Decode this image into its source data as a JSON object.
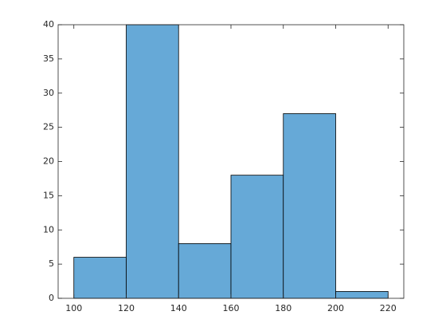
{
  "chart_data": {
    "type": "histogram",
    "bins": [
      100,
      120,
      140,
      160,
      180,
      200,
      220
    ],
    "values": [
      6,
      40,
      8,
      18,
      27,
      1
    ],
    "color": "#66a9d7",
    "edge_color": "#000000",
    "xlim": [
      94,
      226
    ],
    "ylim": [
      0,
      40
    ],
    "xticks": [
      100,
      120,
      140,
      160,
      180,
      200,
      220
    ],
    "yticks": [
      0,
      5,
      10,
      15,
      20,
      25,
      30,
      35,
      40
    ],
    "grid": false
  }
}
